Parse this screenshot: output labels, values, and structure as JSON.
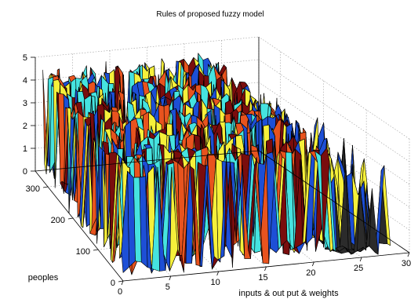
{
  "chart_data": {
    "type": "surface",
    "title": "Rules of proposed fuzzy model",
    "xlabel": "inputs & out put & weights",
    "ylabel": "peoples",
    "zlabel": "",
    "xlim": [
      0,
      30
    ],
    "ylim": [
      0,
      350
    ],
    "zlim": [
      0,
      5
    ],
    "x_ticks": [
      "0",
      "5",
      "10",
      "15",
      "20",
      "25",
      "30"
    ],
    "y_ticks": [
      "0",
      "100",
      "200",
      "300"
    ],
    "z_ticks": [
      "0",
      "1",
      "2",
      "3",
      "4",
      "5"
    ],
    "grid": true,
    "colormap": [
      "#1d4fd6",
      "#45e3e0",
      "#f6f03a",
      "#e8531e",
      "#7a0d0d"
    ],
    "surface": {
      "x_count": 30,
      "y_count": 340,
      "z_range": [
        0,
        5
      ],
      "region_dense_x": [
        0,
        22
      ],
      "region_sparse_x": [
        22,
        30
      ]
    }
  }
}
